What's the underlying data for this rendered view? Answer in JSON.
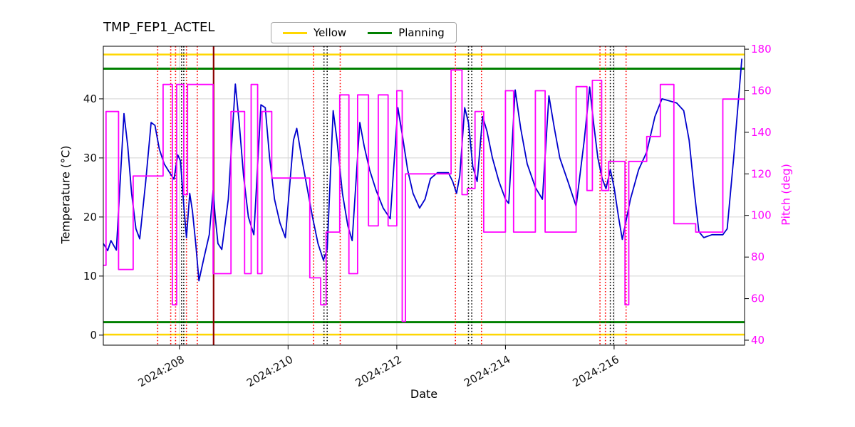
{
  "title": "TMP_FEP1_ACTEL",
  "legend": {
    "items": [
      {
        "label": "Yellow",
        "color": "#FFD700"
      },
      {
        "label": "Planning",
        "color": "#008000"
      }
    ]
  },
  "axes": {
    "xlabel": "Date",
    "ylabel_left": "Temperature (°C)",
    "ylabel_right": "Pitch (deg)",
    "right_axis_color": "#FF00FF"
  },
  "chart_data": {
    "type": "line",
    "title": "TMP_FEP1_ACTEL",
    "xlabel": "Date",
    "ylabel": "Temperature (°C)",
    "y2label": "Pitch (deg)",
    "xlim": [
      206.6,
      218.4
    ],
    "ylim": [
      -1.7,
      48.9
    ],
    "y2lim": [
      37.6,
      181.4
    ],
    "grid": true,
    "xticks": [
      {
        "x": 208,
        "label": "2024:208"
      },
      {
        "x": 210,
        "label": "2024:210"
      },
      {
        "x": 212,
        "label": "2024:212"
      },
      {
        "x": 214,
        "label": "2024:214"
      },
      {
        "x": 216,
        "label": "2024:216"
      }
    ],
    "yticks": [
      0,
      10,
      20,
      30,
      40
    ],
    "y2ticks": [
      40,
      60,
      80,
      100,
      120,
      140,
      160,
      180
    ],
    "hlines": [
      {
        "y": 47.5,
        "color": "#FFD700",
        "width": 2.5,
        "label": "Yellow-high"
      },
      {
        "y": 0.1,
        "color": "#FFD700",
        "width": 2.5,
        "label": "Yellow-low"
      },
      {
        "y": 45.1,
        "color": "#008000",
        "width": 3,
        "label": "Planning-high"
      },
      {
        "y": 2.2,
        "color": "#008000",
        "width": 3,
        "label": "Planning-low"
      }
    ],
    "vlines": [
      {
        "x": 207.6,
        "color": "#FF0000",
        "style": "dotted"
      },
      {
        "x": 207.84,
        "color": "#FF0000",
        "style": "dotted"
      },
      {
        "x": 207.93,
        "color": "#FF0000",
        "style": "dotted"
      },
      {
        "x": 208.04,
        "color": "#000000",
        "style": "dotted"
      },
      {
        "x": 208.08,
        "color": "#000000",
        "style": "dotted"
      },
      {
        "x": 208.13,
        "color": "#FF0000",
        "style": "dotted"
      },
      {
        "x": 208.33,
        "color": "#FF0000",
        "style": "dotted"
      },
      {
        "x": 208.63,
        "color": "#8B0000",
        "style": "solid"
      },
      {
        "x": 210.47,
        "color": "#FF0000",
        "style": "dotted"
      },
      {
        "x": 210.66,
        "color": "#000000",
        "style": "dotted"
      },
      {
        "x": 210.72,
        "color": "#000000",
        "style": "dotted"
      },
      {
        "x": 210.96,
        "color": "#FF0000",
        "style": "dotted"
      },
      {
        "x": 213.08,
        "color": "#FF0000",
        "style": "dotted"
      },
      {
        "x": 213.32,
        "color": "#000000",
        "style": "dotted"
      },
      {
        "x": 213.38,
        "color": "#000000",
        "style": "dotted"
      },
      {
        "x": 213.56,
        "color": "#FF0000",
        "style": "dotted"
      },
      {
        "x": 215.74,
        "color": "#FF0000",
        "style": "dotted"
      },
      {
        "x": 215.84,
        "color": "#FF0000",
        "style": "dotted"
      },
      {
        "x": 215.93,
        "color": "#000000",
        "style": "dotted"
      },
      {
        "x": 215.99,
        "color": "#000000",
        "style": "dotted"
      },
      {
        "x": 216.22,
        "color": "#FF0000",
        "style": "dotted"
      }
    ],
    "series": [
      {
        "name": "Temperature",
        "axis": "y",
        "color": "#0000CD",
        "mode": "line",
        "points": [
          [
            206.6,
            15.5
          ],
          [
            206.68,
            14.3
          ],
          [
            206.74,
            16.0
          ],
          [
            206.84,
            14.4
          ],
          [
            206.98,
            37.5
          ],
          [
            207.05,
            32.0
          ],
          [
            207.12,
            24.0
          ],
          [
            207.2,
            18.0
          ],
          [
            207.27,
            16.3
          ],
          [
            207.38,
            26.0
          ],
          [
            207.48,
            36.0
          ],
          [
            207.55,
            35.5
          ],
          [
            207.63,
            31.5
          ],
          [
            207.72,
            29.0
          ],
          [
            207.82,
            27.5
          ],
          [
            207.9,
            26.4
          ],
          [
            207.97,
            30.5
          ],
          [
            208.02,
            29.5
          ],
          [
            208.08,
            22.0
          ],
          [
            208.13,
            16.5
          ],
          [
            208.19,
            24.0
          ],
          [
            208.24,
            21.0
          ],
          [
            208.3,
            15.5
          ],
          [
            208.36,
            9.2
          ],
          [
            208.45,
            13.0
          ],
          [
            208.55,
            17.0
          ],
          [
            208.62,
            24.5
          ],
          [
            208.66,
            20.0
          ],
          [
            208.71,
            15.5
          ],
          [
            208.78,
            14.5
          ],
          [
            208.9,
            23.0
          ],
          [
            209.03,
            42.5
          ],
          [
            209.1,
            36.0
          ],
          [
            209.18,
            27.0
          ],
          [
            209.27,
            20.0
          ],
          [
            209.37,
            17.0
          ],
          [
            209.5,
            39.0
          ],
          [
            209.58,
            38.5
          ],
          [
            209.66,
            30.0
          ],
          [
            209.75,
            23.0
          ],
          [
            209.85,
            19.0
          ],
          [
            209.95,
            16.5
          ],
          [
            210.1,
            33.0
          ],
          [
            210.16,
            35.0
          ],
          [
            210.25,
            30.0
          ],
          [
            210.35,
            25.0
          ],
          [
            210.45,
            20.0
          ],
          [
            210.55,
            15.5
          ],
          [
            210.65,
            12.7
          ],
          [
            210.72,
            14.5
          ],
          [
            210.83,
            38.0
          ],
          [
            210.9,
            33.0
          ],
          [
            211.0,
            24.0
          ],
          [
            211.1,
            18.5
          ],
          [
            211.18,
            16.0
          ],
          [
            211.32,
            36.0
          ],
          [
            211.4,
            32.0
          ],
          [
            211.5,
            28.0
          ],
          [
            211.62,
            24.5
          ],
          [
            211.75,
            21.5
          ],
          [
            211.88,
            19.7
          ],
          [
            212.02,
            38.5
          ],
          [
            212.1,
            34.0
          ],
          [
            212.2,
            28.0
          ],
          [
            212.3,
            24.0
          ],
          [
            212.42,
            21.5
          ],
          [
            212.52,
            23.0
          ],
          [
            212.62,
            26.5
          ],
          [
            212.75,
            27.5
          ],
          [
            212.95,
            27.5
          ],
          [
            213.03,
            26.0
          ],
          [
            213.1,
            24.0
          ],
          [
            213.16,
            27.0
          ],
          [
            213.25,
            38.5
          ],
          [
            213.32,
            36.0
          ],
          [
            213.4,
            28.5
          ],
          [
            213.48,
            26.0
          ],
          [
            213.58,
            37.0
          ],
          [
            213.66,
            34.5
          ],
          [
            213.76,
            30.0
          ],
          [
            213.88,
            26.0
          ],
          [
            214.0,
            23.0
          ],
          [
            214.06,
            22.3
          ],
          [
            214.18,
            41.5
          ],
          [
            214.28,
            35.0
          ],
          [
            214.4,
            29.0
          ],
          [
            214.55,
            25.0
          ],
          [
            214.68,
            23.0
          ],
          [
            214.8,
            40.5
          ],
          [
            214.9,
            35.0
          ],
          [
            215.0,
            30.0
          ],
          [
            215.15,
            26.0
          ],
          [
            215.3,
            21.8
          ],
          [
            215.45,
            33.0
          ],
          [
            215.55,
            42.0
          ],
          [
            215.62,
            36.0
          ],
          [
            215.7,
            30.0
          ],
          [
            215.78,
            26.5
          ],
          [
            215.85,
            24.8
          ],
          [
            215.93,
            28.0
          ],
          [
            216.0,
            25.0
          ],
          [
            216.08,
            20.0
          ],
          [
            216.15,
            16.2
          ],
          [
            216.3,
            23.0
          ],
          [
            216.45,
            28.0
          ],
          [
            216.6,
            31.0
          ],
          [
            216.75,
            37.0
          ],
          [
            216.88,
            40.0
          ],
          [
            217.0,
            39.7
          ],
          [
            217.15,
            39.3
          ],
          [
            217.28,
            38.0
          ],
          [
            217.38,
            33.0
          ],
          [
            217.48,
            24.0
          ],
          [
            217.56,
            17.5
          ],
          [
            217.65,
            16.5
          ],
          [
            217.8,
            17.0
          ],
          [
            218.0,
            17.0
          ],
          [
            218.08,
            18.0
          ],
          [
            218.2,
            30.0
          ],
          [
            218.35,
            46.8
          ]
        ]
      },
      {
        "name": "Pitch",
        "axis": "y2",
        "color": "#FF00FF",
        "mode": "step",
        "points": [
          [
            206.6,
            76
          ],
          [
            206.65,
            150
          ],
          [
            206.88,
            74
          ],
          [
            207.15,
            119
          ],
          [
            207.7,
            163
          ],
          [
            207.87,
            57
          ],
          [
            207.95,
            163
          ],
          [
            208.08,
            110
          ],
          [
            208.15,
            163
          ],
          [
            208.62,
            72
          ],
          [
            208.95,
            150
          ],
          [
            209.2,
            72
          ],
          [
            209.32,
            163
          ],
          [
            209.44,
            72
          ],
          [
            209.52,
            150
          ],
          [
            209.7,
            118
          ],
          [
            210.4,
            70
          ],
          [
            210.6,
            57
          ],
          [
            210.7,
            92
          ],
          [
            210.95,
            158
          ],
          [
            211.12,
            72
          ],
          [
            211.28,
            158
          ],
          [
            211.48,
            95
          ],
          [
            211.66,
            158
          ],
          [
            211.84,
            95
          ],
          [
            212.0,
            160
          ],
          [
            212.1,
            49
          ],
          [
            212.16,
            120
          ],
          [
            213.0,
            170
          ],
          [
            213.2,
            110
          ],
          [
            213.3,
            113
          ],
          [
            213.44,
            150
          ],
          [
            213.6,
            92
          ],
          [
            214.0,
            160
          ],
          [
            214.15,
            92
          ],
          [
            214.55,
            160
          ],
          [
            214.73,
            92
          ],
          [
            215.3,
            162
          ],
          [
            215.5,
            112
          ],
          [
            215.6,
            165
          ],
          [
            215.77,
            112
          ],
          [
            215.9,
            126
          ],
          [
            216.2,
            57
          ],
          [
            216.27,
            126
          ],
          [
            216.6,
            138
          ],
          [
            216.85,
            163
          ],
          [
            217.1,
            96
          ],
          [
            217.5,
            92
          ],
          [
            218.0,
            156
          ],
          [
            218.4,
            156
          ]
        ]
      }
    ]
  }
}
